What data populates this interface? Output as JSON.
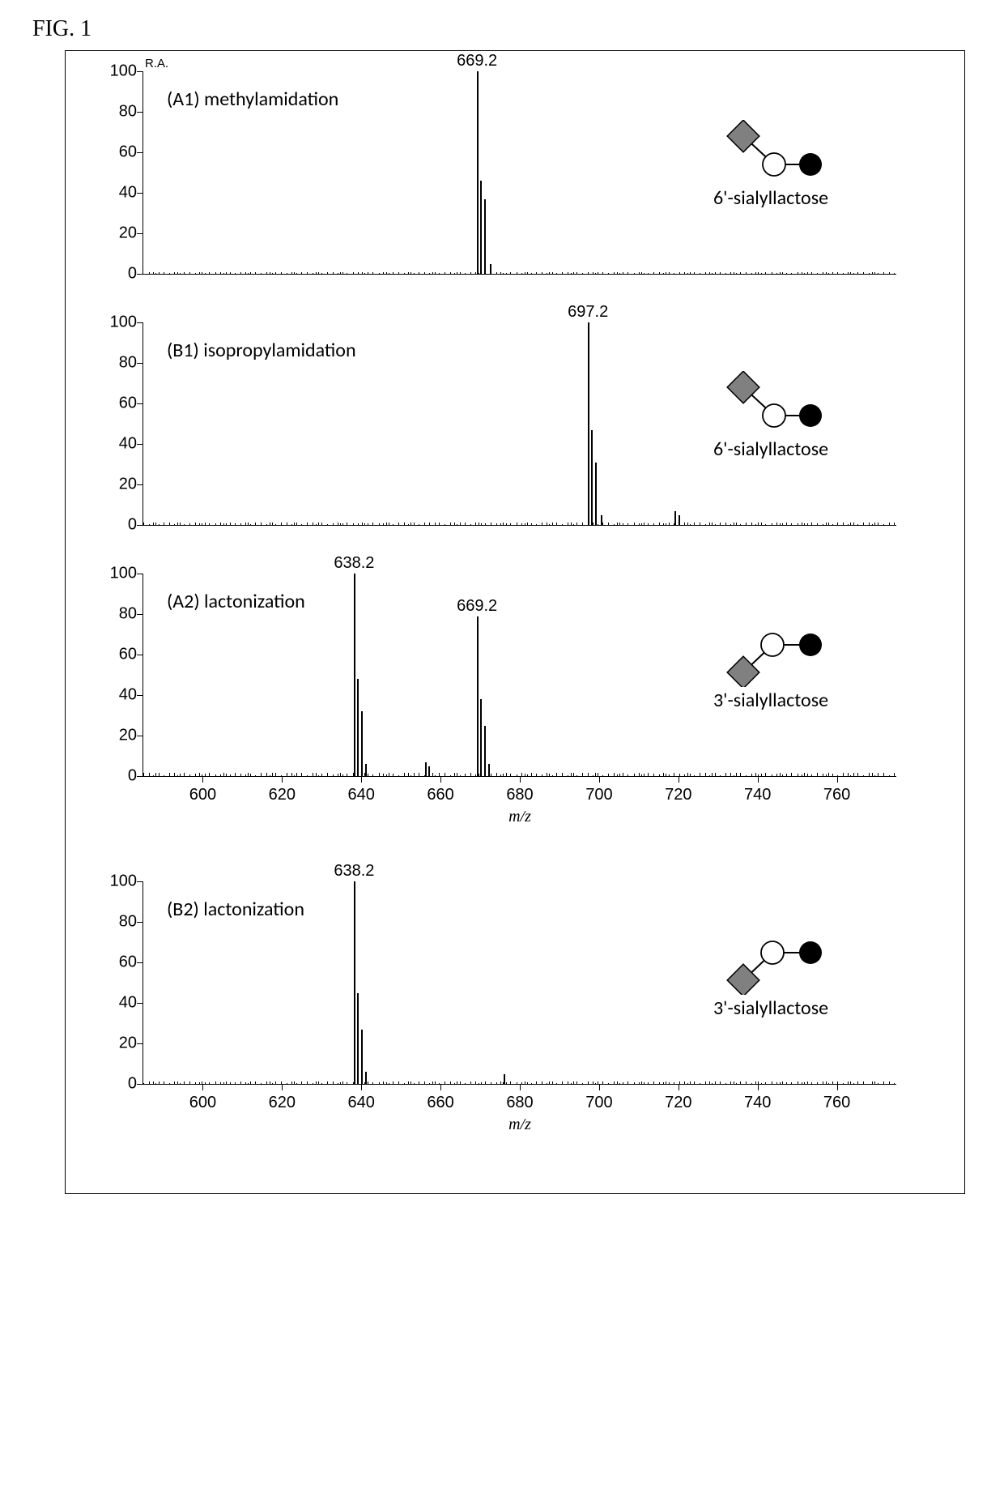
{
  "figure_label": "FIG. 1",
  "ra_label": "R.A.",
  "x_axis": {
    "label": "m/z",
    "min": 585,
    "max": 775,
    "ticks": [
      600,
      620,
      640,
      660,
      680,
      700,
      720,
      740,
      760
    ]
  },
  "y_axis": {
    "min": 0,
    "max": 100,
    "ticks": [
      0,
      20,
      40,
      60,
      80,
      100
    ]
  },
  "colors": {
    "diamond_fill": "#808080",
    "diamond_stroke": "#000000",
    "open_circle_fill": "#ffffff",
    "open_circle_stroke": "#000000",
    "closed_circle_fill": "#000000",
    "bond_color": "#000000",
    "background": "#ffffff",
    "axis_color": "#000000"
  },
  "panels": [
    {
      "id": "A1",
      "label": "(A1) methylamidation",
      "glycan_name": "6'-sialyllactose",
      "glycan_type": "2-6",
      "show_x_axis": false,
      "main_peaks": [
        {
          "mz": 669.2,
          "intensity": 100,
          "label": "669.2"
        },
        {
          "mz": 670.0,
          "intensity": 46
        },
        {
          "mz": 671.0,
          "intensity": 37
        },
        {
          "mz": 672.5,
          "intensity": 5
        }
      ],
      "noise_level": 2
    },
    {
      "id": "B1",
      "label": "(B1) isopropylamidation",
      "glycan_name": "6'-sialyllactose",
      "glycan_type": "2-6",
      "show_x_axis": false,
      "main_peaks": [
        {
          "mz": 697.2,
          "intensity": 100,
          "label": "697.2"
        },
        {
          "mz": 698.0,
          "intensity": 47
        },
        {
          "mz": 699.0,
          "intensity": 31
        },
        {
          "mz": 700.5,
          "intensity": 5
        },
        {
          "mz": 719.0,
          "intensity": 7
        },
        {
          "mz": 720.0,
          "intensity": 5
        }
      ],
      "noise_level": 3
    },
    {
      "id": "A2",
      "label": "(A2) lactonization",
      "glycan_name": "3'-sialyllactose",
      "glycan_type": "2-3",
      "show_x_axis": true,
      "main_peaks": [
        {
          "mz": 638.2,
          "intensity": 100,
          "label": "638.2"
        },
        {
          "mz": 639.0,
          "intensity": 48
        },
        {
          "mz": 640.0,
          "intensity": 32
        },
        {
          "mz": 641.0,
          "intensity": 6
        },
        {
          "mz": 669.2,
          "intensity": 79,
          "label": "669.2"
        },
        {
          "mz": 670.0,
          "intensity": 38
        },
        {
          "mz": 671.0,
          "intensity": 25
        },
        {
          "mz": 672.0,
          "intensity": 6
        },
        {
          "mz": 656.0,
          "intensity": 7
        },
        {
          "mz": 657.0,
          "intensity": 5
        }
      ],
      "noise_level": 4
    },
    {
      "id": "B2",
      "label": "(B2)  lactonization",
      "glycan_name": "3'-sialyllactose",
      "glycan_type": "2-3",
      "show_x_axis": true,
      "main_peaks": [
        {
          "mz": 638.2,
          "intensity": 100,
          "label": "638.2"
        },
        {
          "mz": 639.0,
          "intensity": 45
        },
        {
          "mz": 640.0,
          "intensity": 27
        },
        {
          "mz": 641.0,
          "intensity": 6
        },
        {
          "mz": 676.0,
          "intensity": 5
        }
      ],
      "noise_level": 3
    }
  ]
}
